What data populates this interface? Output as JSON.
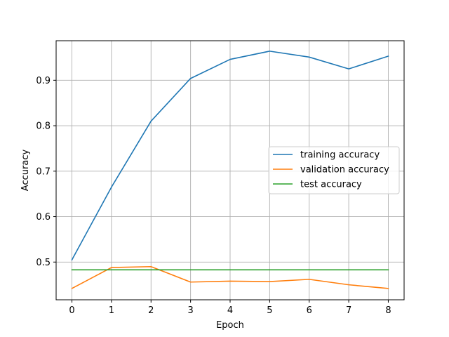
{
  "chart_data": {
    "type": "line",
    "title": "",
    "xlabel": "Epoch",
    "ylabel": "Accuracy",
    "x": [
      0,
      1,
      2,
      3,
      4,
      5,
      6,
      7,
      8
    ],
    "xticks": [
      0,
      1,
      2,
      3,
      4,
      5,
      6,
      7,
      8
    ],
    "xlim": [
      -0.4,
      8.4
    ],
    "yticks": [
      0.5,
      0.6,
      0.7,
      0.8,
      0.9
    ],
    "ylim": [
      0.417,
      0.987
    ],
    "grid": true,
    "legend_position": "center-right",
    "series": [
      {
        "name": "training accuracy",
        "color": "#1f77b4",
        "values": [
          0.505,
          0.665,
          0.81,
          0.904,
          0.946,
          0.964,
          0.951,
          0.925,
          0.953
        ]
      },
      {
        "name": "validation accuracy",
        "color": "#ff7f0e",
        "values": [
          0.442,
          0.488,
          0.49,
          0.456,
          0.458,
          0.457,
          0.462,
          0.45,
          0.442
        ]
      },
      {
        "name": "test accuracy",
        "color": "#2ca02c",
        "values": [
          0.483,
          0.483,
          0.483,
          0.483,
          0.483,
          0.483,
          0.483,
          0.483,
          0.483
        ]
      }
    ]
  }
}
